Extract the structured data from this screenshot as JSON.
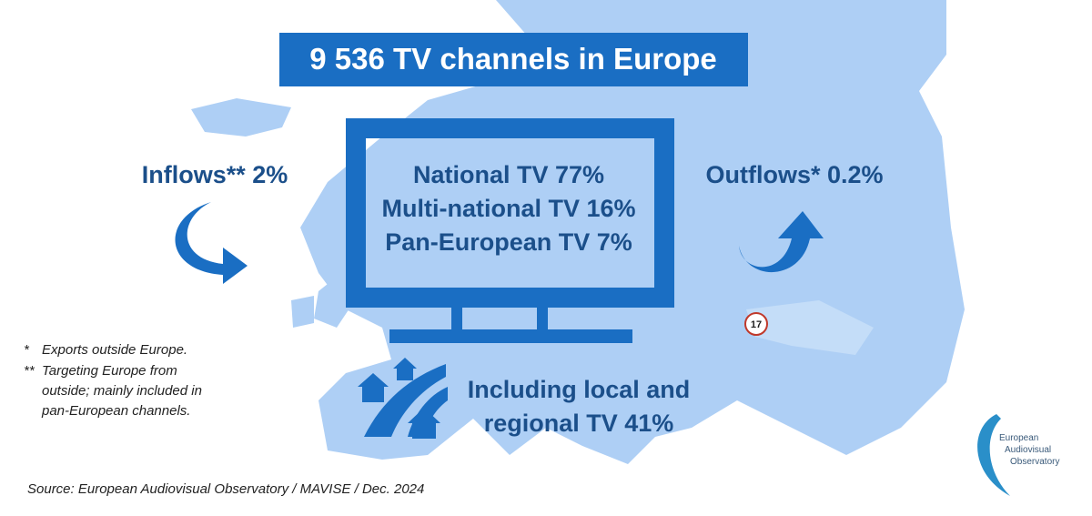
{
  "title": "9 536 TV channels in Europe",
  "inflows": "Inflows** 2%",
  "outflows": "Outflows* 0.2%",
  "tv_breakdown": [
    "National TV 77%",
    "Multi-national TV 16%",
    "Pan-European TV 7%"
  ],
  "regional": [
    "Including local and",
    "regional TV 41%"
  ],
  "footnotes": [
    {
      "mark": "*",
      "lines": [
        "Exports outside Europe."
      ]
    },
    {
      "mark": "**",
      "lines": [
        "Targeting Europe from",
        "outside; mainly included in",
        "pan-European channels."
      ]
    }
  ],
  "badge": "17",
  "source": "Source: European Audiovisual Observatory / MAVISE / Dec. 2024",
  "logo": [
    "European",
    "Audiovisual",
    "Observatory"
  ]
}
